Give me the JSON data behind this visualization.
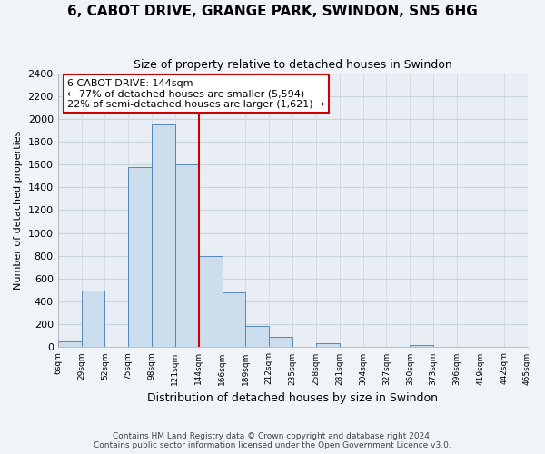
{
  "title": "6, CABOT DRIVE, GRANGE PARK, SWINDON, SN5 6HG",
  "subtitle": "Size of property relative to detached houses in Swindon",
  "xlabel": "Distribution of detached houses by size in Swindon",
  "ylabel": "Number of detached properties",
  "bar_color": "#ccdded",
  "bar_edge_color": "#5588bb",
  "annotation_box_text": "6 CABOT DRIVE: 144sqm\n← 77% of detached houses are smaller (5,594)\n22% of semi-detached houses are larger (1,621) →",
  "annotation_box_color": "#ffffff",
  "annotation_box_edge_color": "#cc0000",
  "vline_color": "#cc0000",
  "footer_line1": "Contains HM Land Registry data © Crown copyright and database right 2024.",
  "footer_line2": "Contains public sector information licensed under the Open Government Licence v3.0.",
  "bin_labels": [
    "6sqm",
    "29sqm",
    "52sqm",
    "75sqm",
    "98sqm",
    "121sqm",
    "144sqm",
    "166sqm",
    "189sqm",
    "212sqm",
    "235sqm",
    "258sqm",
    "281sqm",
    "304sqm",
    "327sqm",
    "350sqm",
    "373sqm",
    "396sqm",
    "419sqm",
    "442sqm",
    "465sqm"
  ],
  "bar_heights": [
    50,
    500,
    0,
    1580,
    1950,
    1600,
    800,
    480,
    190,
    90,
    0,
    35,
    0,
    0,
    0,
    20,
    0,
    0,
    0,
    0
  ],
  "ylim": [
    0,
    2400
  ],
  "yticks": [
    0,
    200,
    400,
    600,
    800,
    1000,
    1200,
    1400,
    1600,
    1800,
    2000,
    2200,
    2400
  ],
  "background_color": "#f0f4f8",
  "plot_bg_color": "#e8eef4",
  "grid_color": "#c8d4dc"
}
